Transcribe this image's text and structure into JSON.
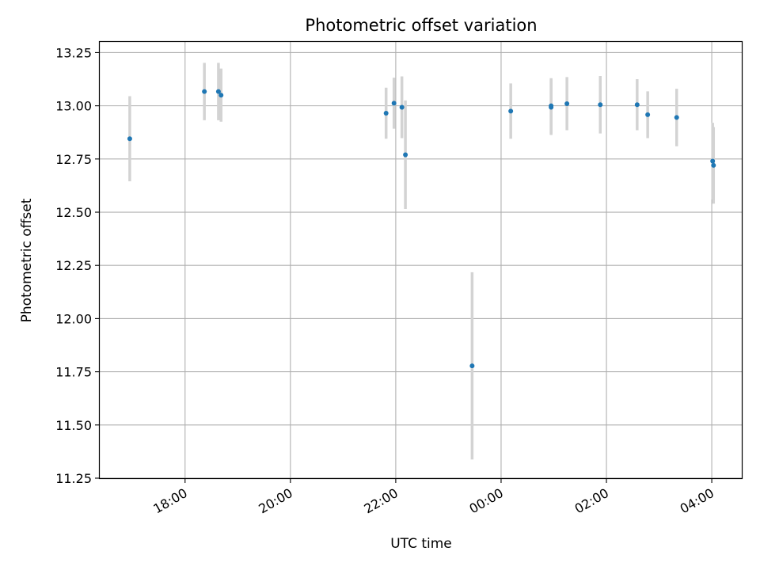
{
  "chart_data": {
    "type": "scatter",
    "title": "Photometric offset variation",
    "xlabel": "UTC time",
    "ylabel": "Photometric offset",
    "grid": true,
    "x_ticks": [
      "18:00",
      "20:00",
      "22:00",
      "00:00",
      "02:00",
      "04:00"
    ],
    "x_ticks_hours": [
      18,
      20,
      22,
      24,
      26,
      28
    ],
    "xlim_hours": [
      16.38,
      28.57
    ],
    "y_ticks": [
      "11.25",
      "11.50",
      "11.75",
      "12.00",
      "12.25",
      "12.50",
      "12.75",
      "13.00",
      "13.25"
    ],
    "y_tick_values": [
      11.25,
      11.5,
      11.75,
      12.0,
      12.25,
      12.5,
      12.75,
      13.0,
      13.25
    ],
    "ylim": [
      11.25,
      13.3
    ],
    "point_color": "#1f77b4",
    "errorbar_color": "#d3d3d3",
    "points": [
      {
        "x": "16:57",
        "y": 12.845,
        "err": 0.2
      },
      {
        "x": "18:22",
        "y": 13.067,
        "err": 0.135
      },
      {
        "x": "18:38",
        "y": 13.067,
        "err": 0.135
      },
      {
        "x": "18:41",
        "y": 13.05,
        "err": 0.125
      },
      {
        "x": "21:49",
        "y": 12.965,
        "err": 0.12
      },
      {
        "x": "21:58",
        "y": 13.012,
        "err": 0.12
      },
      {
        "x": "22:07",
        "y": 12.993,
        "err": 0.145
      },
      {
        "x": "22:11",
        "y": 12.77,
        "err": 0.255
      },
      {
        "x": "23:27",
        "y": 11.778,
        "err": 0.44
      },
      {
        "x": "00:11",
        "y": 12.975,
        "err": 0.13
      },
      {
        "x": "00:57",
        "y": 13.0,
        "err": 0.13
      },
      {
        "x": "00:57",
        "y": 12.993,
        "err": 0.13
      },
      {
        "x": "01:15",
        "y": 13.01,
        "err": 0.125
      },
      {
        "x": "01:53",
        "y": 13.005,
        "err": 0.135
      },
      {
        "x": "02:35",
        "y": 13.005,
        "err": 0.12
      },
      {
        "x": "02:47",
        "y": 12.958,
        "err": 0.11
      },
      {
        "x": "03:20",
        "y": 12.945,
        "err": 0.135
      },
      {
        "x": "04:01",
        "y": 12.74,
        "err": 0.18
      },
      {
        "x": "04:02",
        "y": 12.72,
        "err": 0.18
      }
    ]
  }
}
